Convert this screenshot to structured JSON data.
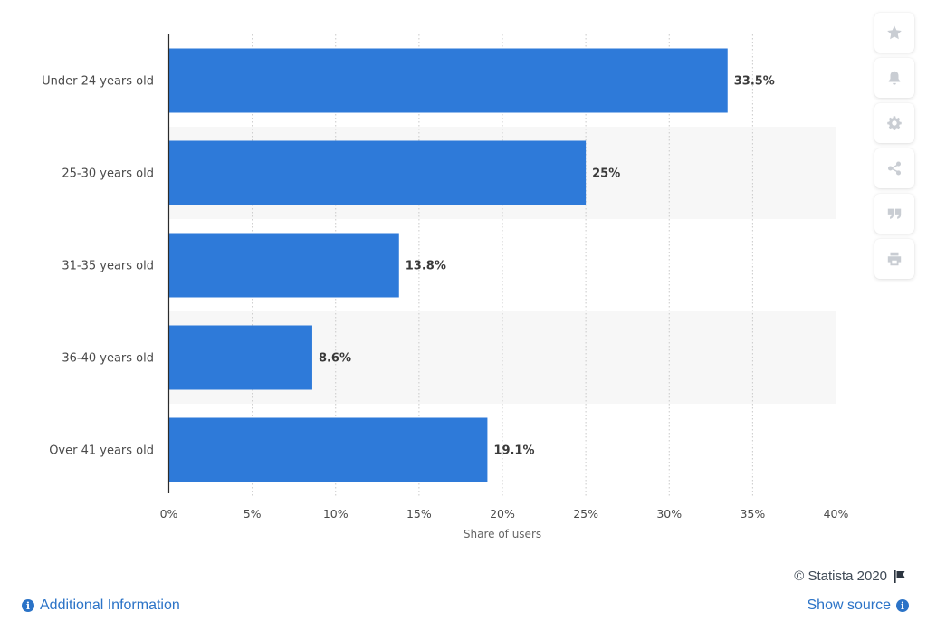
{
  "chart_data": {
    "type": "bar",
    "orientation": "horizontal",
    "categories": [
      "Under 24 years old",
      "25-30 years old",
      "31-35 years old",
      "36-40 years old",
      "Over 41 years old"
    ],
    "values": [
      33.5,
      25,
      13.8,
      8.6,
      19.1
    ],
    "value_labels": [
      "33.5%",
      "25%",
      "13.8%",
      "8.6%",
      "19.1%"
    ],
    "xlabel": "Share of users",
    "ylabel": "",
    "xlim": [
      0,
      40
    ],
    "ticks": [
      0,
      5,
      10,
      15,
      20,
      25,
      30,
      35,
      40
    ],
    "tick_labels": [
      "0%",
      "5%",
      "10%",
      "15%",
      "20%",
      "25%",
      "30%",
      "35%",
      "40%"
    ],
    "grid": "vertical dotted",
    "bar_color": "#2e7ad9"
  },
  "toolbar": {
    "icons": [
      "star-icon",
      "bell-icon",
      "gear-icon",
      "share-icon",
      "quote-icon",
      "print-icon"
    ]
  },
  "footer": {
    "copyright": "© Statista 2020",
    "additional_info": "Additional Information",
    "show_source": "Show source"
  },
  "colors": {
    "bar": "#2e7ad9",
    "link": "#2b73c7",
    "band": "#f7f7f7"
  }
}
